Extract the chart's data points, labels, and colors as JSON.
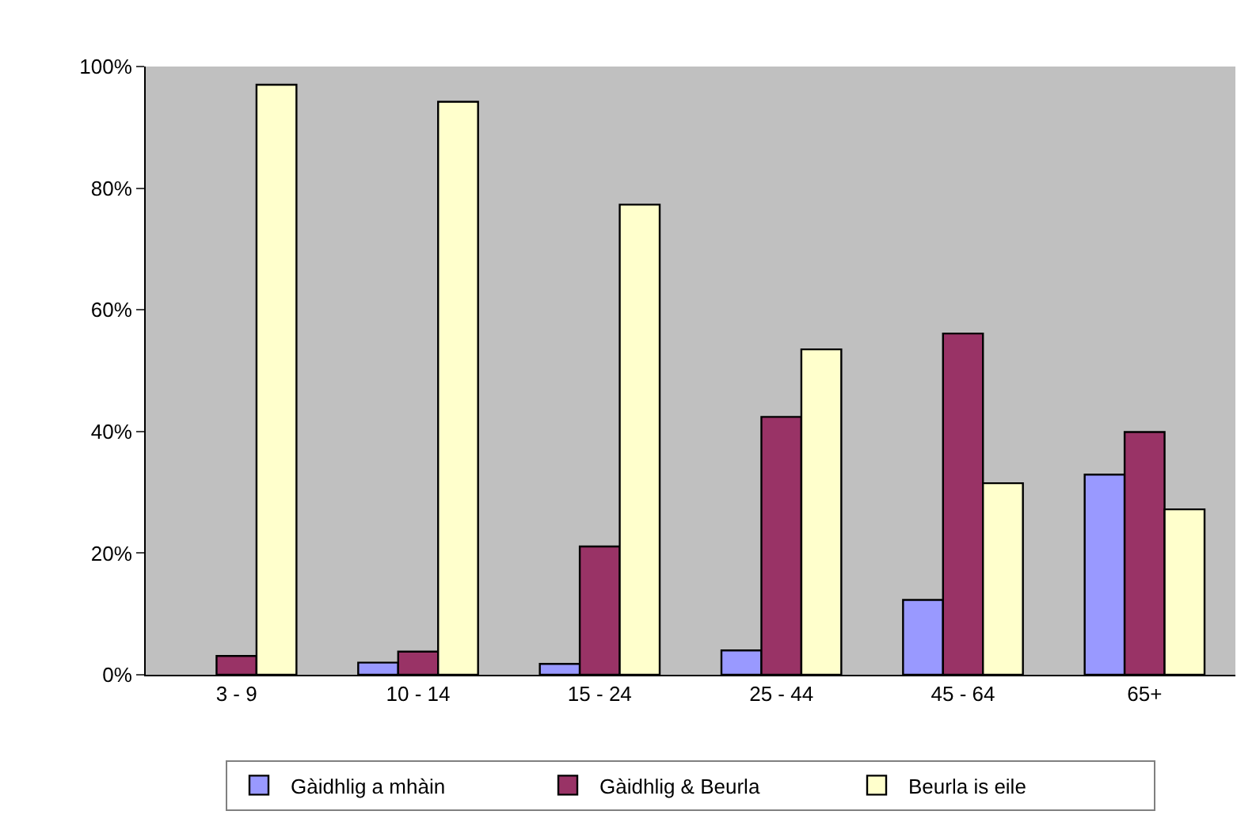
{
  "chart_data": {
    "type": "bar",
    "categories": [
      "3 - 9",
      "10 - 14",
      "15 - 24",
      "25 - 44",
      "45 - 64",
      "65+"
    ],
    "series": [
      {
        "name": "Gàidhlig a mhàin",
        "color": "#9999ff",
        "values": [
          null,
          2.0,
          1.8,
          4.0,
          12.3,
          32.9
        ]
      },
      {
        "name": "Gàidhlig & Beurla",
        "color": "#993366",
        "values": [
          3.1,
          3.8,
          21.1,
          42.4,
          56.1,
          39.9
        ]
      },
      {
        "name": "Beurla is eile",
        "color": "#ffffcc",
        "values": [
          97,
          94.2,
          77.3,
          53.5,
          31.5,
          27.2
        ]
      }
    ],
    "ylim": [
      0,
      100
    ],
    "yticks": [
      {
        "value": 0,
        "label": "0%"
      },
      {
        "value": 20,
        "label": "20%"
      },
      {
        "value": 40,
        "label": "40%"
      },
      {
        "value": 60,
        "label": "60%"
      },
      {
        "value": 80,
        "label": "80%"
      },
      {
        "value": 100,
        "label": "100%"
      }
    ],
    "grid": false,
    "legend": "bottom"
  }
}
